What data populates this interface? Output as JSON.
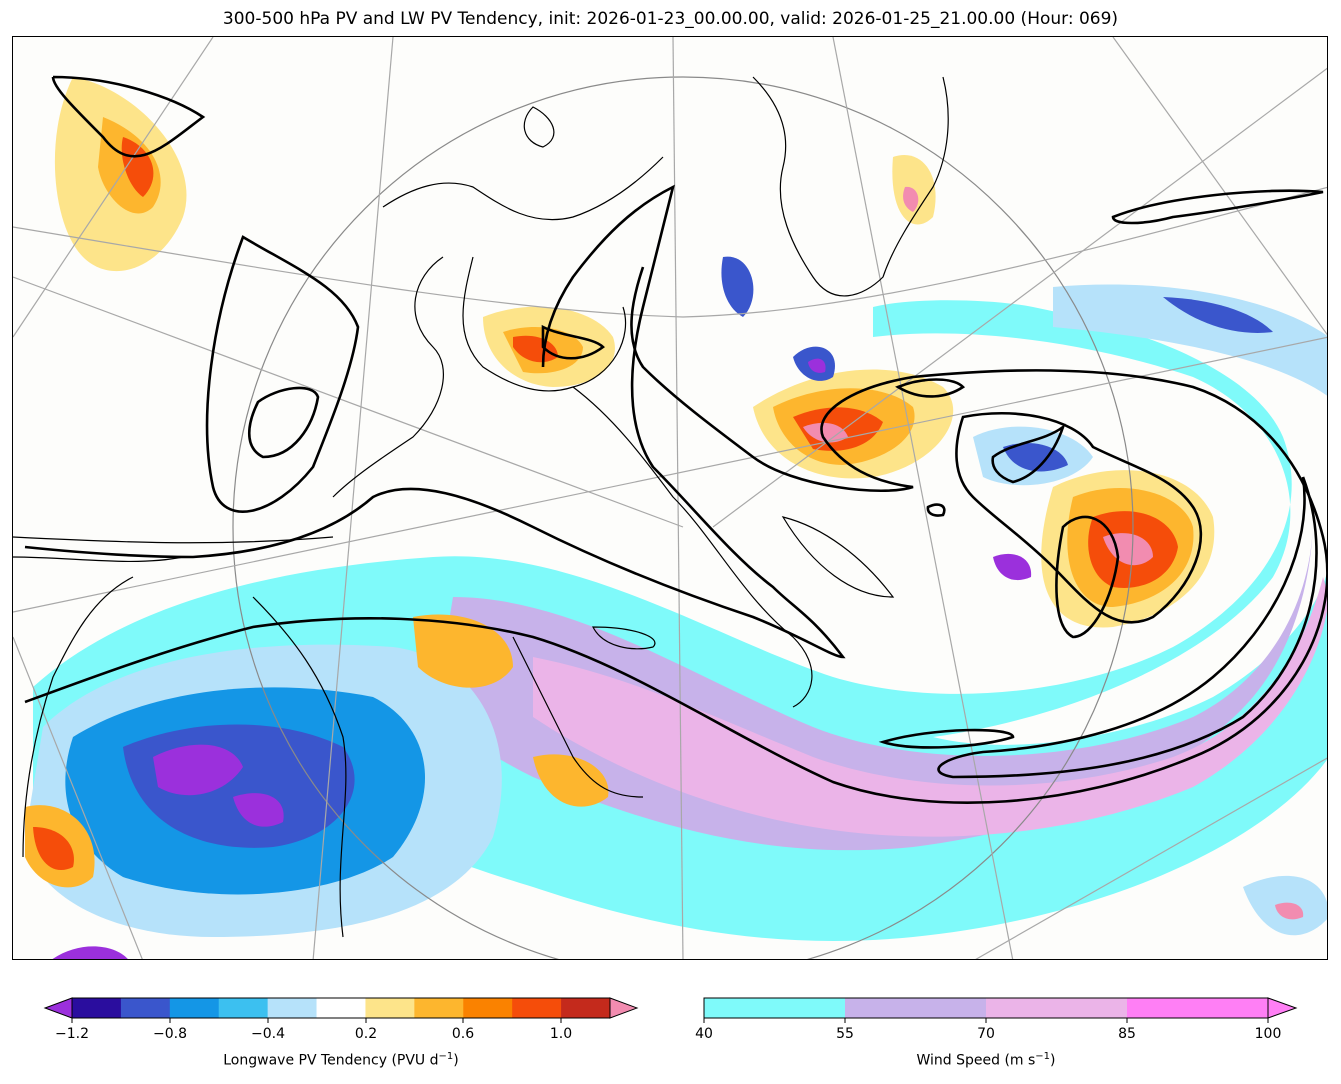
{
  "title": "300-500 hPa PV and LW PV Tendency, init: 2026-01-23_00.00.00, valid: 2026-01-25_21.00.00 (Hour: 069)",
  "colorbars": {
    "pv_tendency": {
      "label": "Longwave PV Tendency (PVU d",
      "label_sup": "−1",
      "label_end": ")",
      "ticks": [
        "−1.2",
        "−0.8",
        "−0.4",
        "0.2",
        "0.6",
        "1.0"
      ],
      "bounds": [
        -1.2,
        -1.0,
        -0.8,
        -0.6,
        -0.4,
        -0.2,
        0.2,
        0.4,
        0.6,
        0.8,
        1.0,
        1.2
      ],
      "colors": [
        "#2a0d9e",
        "#3a56cc",
        "#1496e6",
        "#3cc0f0",
        "#b6e2fa",
        "#ffffff",
        "#fde48a",
        "#fdb62e",
        "#fa8200",
        "#f54d0a",
        "#c42a1c"
      ],
      "under_color": "#9b30dc",
      "over_color": "#f28cb0"
    },
    "wind_speed": {
      "label": "Wind Speed (m s",
      "label_sup": "−1",
      "label_end": ")",
      "ticks": [
        "40",
        "55",
        "70",
        "85",
        "100"
      ],
      "bounds": [
        40,
        55,
        70,
        85,
        100
      ],
      "colors": [
        "#7ffafa",
        "#c7b2ea",
        "#ebb4e8",
        "#ff7ff5"
      ],
      "over_color": "#ff7ff5"
    }
  },
  "map_colors": {
    "coast": "#000000",
    "pv_contour": "#000000",
    "graticule": "#a8a8a8",
    "neg_purple": "#9b30dc",
    "neg_navy": "#2a0d9e",
    "neg_blue": "#3a56cc",
    "neg_mid": "#1496e6",
    "neg_light": "#b6e2fa",
    "pos_yellow": "#fde48a",
    "pos_orange": "#fdb62e",
    "pos_dark": "#fa8200",
    "pos_red": "#f54d0a",
    "pos_pink": "#f28cb0",
    "jet_cyan": "#7ffafa",
    "jet_lav": "#c7b2ea",
    "jet_pink": "#ebb4e8"
  }
}
